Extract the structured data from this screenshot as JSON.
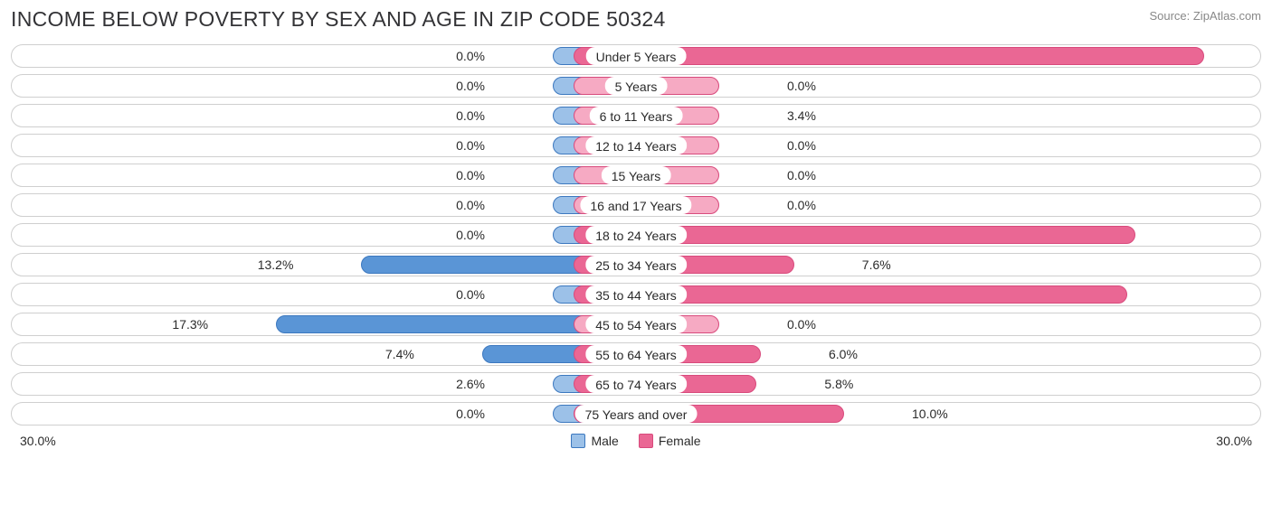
{
  "title": "INCOME BELOW POVERTY BY SEX AND AGE IN ZIP CODE 50324",
  "source": "Source: ZipAtlas.com",
  "chart": {
    "type": "diverging-bar",
    "axis_max": 30.0,
    "axis_label_left": "30.0%",
    "axis_label_right": "30.0%",
    "min_bar_pct": 4.0,
    "colors": {
      "male_fill": "#9cc1e8",
      "male_fill_strong": "#5a95d6",
      "male_border": "#3c78bf",
      "female_fill": "#f6aac3",
      "female_fill_strong": "#ea6794",
      "female_border": "#d84a7c",
      "row_border": "#cfcfcf",
      "text": "#2b2b2b",
      "bg": "#ffffff"
    },
    "legend": {
      "male": "Male",
      "female": "Female"
    },
    "label_fontsize": 14,
    "title_fontsize": 23,
    "rows": [
      {
        "category": "Under 5 Years",
        "male": 0.0,
        "female": 27.3
      },
      {
        "category": "5 Years",
        "male": 0.0,
        "female": 0.0
      },
      {
        "category": "6 to 11 Years",
        "male": 0.0,
        "female": 3.4
      },
      {
        "category": "12 to 14 Years",
        "male": 0.0,
        "female": 0.0
      },
      {
        "category": "15 Years",
        "male": 0.0,
        "female": 0.0
      },
      {
        "category": "16 and 17 Years",
        "male": 0.0,
        "female": 0.0
      },
      {
        "category": "18 to 24 Years",
        "male": 0.0,
        "female": 24.0
      },
      {
        "category": "25 to 34 Years",
        "male": 13.2,
        "female": 7.6
      },
      {
        "category": "35 to 44 Years",
        "male": 0.0,
        "female": 23.6
      },
      {
        "category": "45 to 54 Years",
        "male": 17.3,
        "female": 0.0
      },
      {
        "category": "55 to 64 Years",
        "male": 7.4,
        "female": 6.0
      },
      {
        "category": "65 to 74 Years",
        "male": 2.6,
        "female": 5.8
      },
      {
        "category": "75 Years and over",
        "male": 0.0,
        "female": 10.0
      }
    ]
  }
}
